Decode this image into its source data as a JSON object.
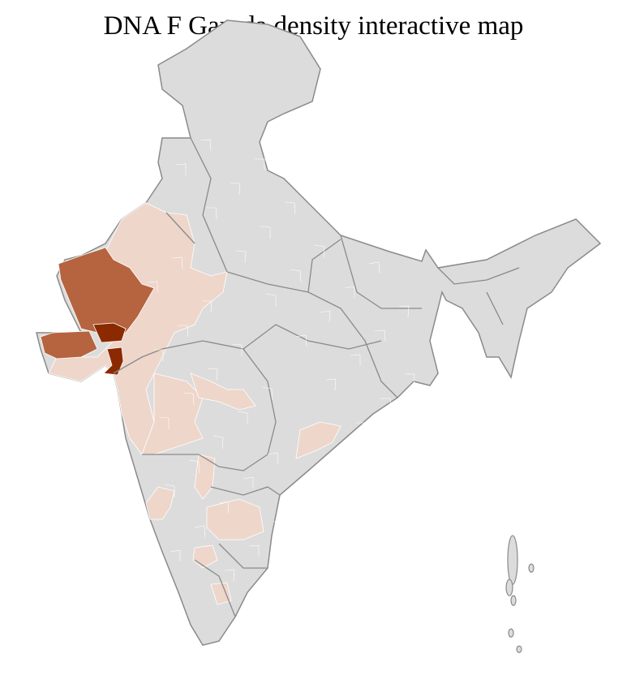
{
  "title": "DNA F Garoda density interactive map",
  "map": {
    "region": "India districts",
    "colors": {
      "no_data": "#dcdcdc",
      "low": "#eed6ca",
      "medium": "#b5643f",
      "high": "#8b2a00",
      "district_border": "#ffffff",
      "state_border": "#8a8a8a"
    }
  }
}
